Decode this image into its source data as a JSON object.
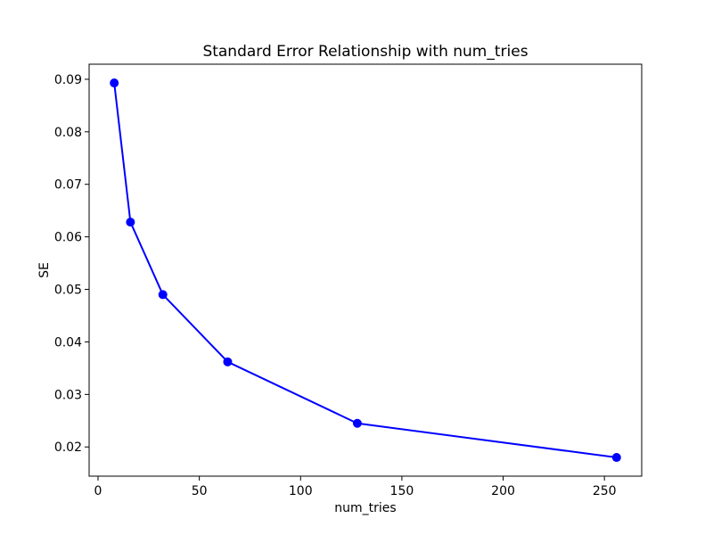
{
  "figure": {
    "background_color": "#ffffff",
    "text_color": "#000000",
    "spine_color": "#000000"
  },
  "chart_data": {
    "type": "line",
    "title": "Standard Error Relationship with num_tries",
    "xlabel": "num_tries",
    "ylabel": "SE",
    "series": [
      {
        "name": "SE",
        "x": [
          8,
          16,
          32,
          64,
          128,
          256
        ],
        "y": [
          0.0893,
          0.0628,
          0.049,
          0.0362,
          0.0245,
          0.018
        ],
        "color": "#0000ff",
        "marker": "circle",
        "marker_size": 5,
        "line_width": 2
      }
    ],
    "xlim": [
      -4.4,
      268.4
    ],
    "ylim": [
      0.01444,
      0.09287
    ],
    "xticks": [
      0,
      50,
      100,
      150,
      200,
      250
    ],
    "xtick_labels": [
      "0",
      "50",
      "100",
      "150",
      "200",
      "250"
    ],
    "yticks": [
      0.02,
      0.03,
      0.04,
      0.05,
      0.06,
      0.07,
      0.08,
      0.09
    ],
    "ytick_labels": [
      "0.02",
      "0.03",
      "0.04",
      "0.05",
      "0.06",
      "0.07",
      "0.08",
      "0.09"
    ],
    "grid": false,
    "legend_position": "none"
  }
}
